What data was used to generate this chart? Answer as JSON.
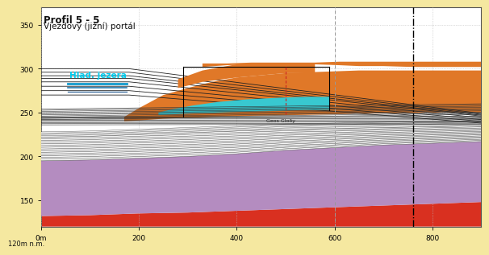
{
  "title_line1": "Profil 5 - 5",
  "title_line2": "Vjezdový (jižní) portál",
  "xlabel_ticks": [
    0,
    200,
    400,
    600,
    800
  ],
  "xlabel_labels": [
    "0m",
    "200",
    "400",
    "600",
    "800"
  ],
  "ylabel_bottom": "120m n.m.",
  "yticks": [
    150,
    200,
    250,
    300,
    350
  ],
  "xlim": [
    0,
    900
  ],
  "ylim": [
    120,
    370
  ],
  "bg_color": "#F5E8A0",
  "plot_bg_color": "#FFFFFF",
  "water_label": "Hlad. jezera",
  "water_label_color": "#00CCEE",
  "water_level": 283,
  "annotation_text": "Geos Gloðy",
  "dashdot_line_x": 760,
  "dashed_line_x": 600,
  "red_line_x": 500
}
